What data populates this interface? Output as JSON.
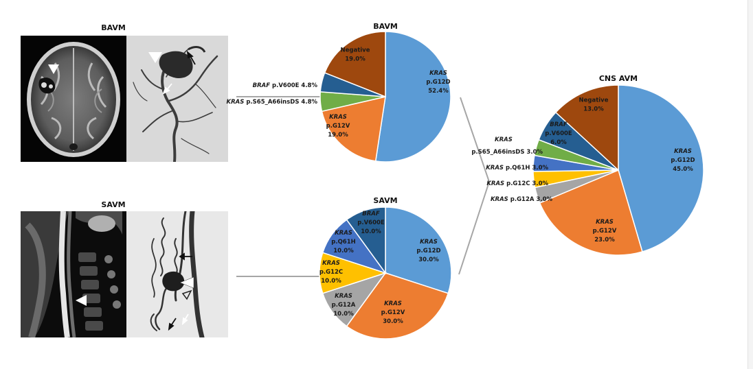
{
  "figure": {
    "bavm_panel_title": "BAVM",
    "savm_panel_title": "SAVM"
  },
  "colors": {
    "G12D": "#5b9bd5",
    "G12V": "#ed7d31",
    "G12A": "#a5a5a5",
    "G12C": "#ffc000",
    "Q61H": "#4472c4",
    "S65": "#70ad47",
    "BRAF": "#255e91",
    "Negative": "#9e480e",
    "connector": "#a6a6a6",
    "image_panel_border": "#cfcfcf"
  },
  "images": [
    {
      "name": "bavm-axial-mri",
      "description_icon": "brain-mri-image",
      "marker": "arrowhead"
    },
    {
      "name": "bavm-angiogram",
      "description_icon": "cerebral-angiogram-image",
      "marker": "arrowhead-and-arrows"
    },
    {
      "name": "savm-sagittal-mri",
      "description_icon": "spinal-mri-image",
      "marker": "arrowhead"
    },
    {
      "name": "savm-angiogram",
      "description_icon": "spinal-angiogram-image",
      "marker": "arrowheads-and-arrows"
    }
  ],
  "chart_data": [
    {
      "type": "pie",
      "title": "BAVM",
      "slices": [
        {
          "key": "G12D",
          "gene": "KRAS",
          "variant": "p.G12D",
          "value": 52.4,
          "label": "52.4%"
        },
        {
          "key": "G12V",
          "gene": "KRAS",
          "variant": "p.G12V",
          "value": 19.0,
          "label": "19.0%"
        },
        {
          "key": "S65",
          "gene": "KRAS",
          "variant": "p.S65_A66insDS",
          "value": 4.8,
          "label": "4.8%"
        },
        {
          "key": "BRAF",
          "gene": "BRAF",
          "variant": "p.V600E",
          "value": 4.8,
          "label": "4.8%"
        },
        {
          "key": "Negative",
          "gene": "",
          "variant": "Negative",
          "value": 19.0,
          "label": "19.0%"
        }
      ]
    },
    {
      "type": "pie",
      "title": "SAVM",
      "slices": [
        {
          "key": "G12D",
          "gene": "KRAS",
          "variant": "p.G12D",
          "value": 30.0,
          "label": "30.0%"
        },
        {
          "key": "G12V",
          "gene": "KRAS",
          "variant": "p.G12V",
          "value": 30.0,
          "label": "30.0%"
        },
        {
          "key": "G12A",
          "gene": "KRAS",
          "variant": "p.G12A",
          "value": 10.0,
          "label": "10.0%"
        },
        {
          "key": "G12C",
          "gene": "KRAS",
          "variant": "p.G12C",
          "value": 10.0,
          "label": "10.0%"
        },
        {
          "key": "Q61H",
          "gene": "KRAS",
          "variant": "p.Q61H",
          "value": 10.0,
          "label": "10.0%"
        },
        {
          "key": "BRAF",
          "gene": "BRAF",
          "variant": "p.V600E",
          "value": 10.0,
          "label": "10.0%"
        }
      ]
    },
    {
      "type": "pie",
      "title": "CNS AVM",
      "slices": [
        {
          "key": "G12D",
          "gene": "KRAS",
          "variant": "p.G12D",
          "value": 45.0,
          "label": "45.0%"
        },
        {
          "key": "G12V",
          "gene": "KRAS",
          "variant": "p.G12V",
          "value": 23.0,
          "label": "23.0%"
        },
        {
          "key": "G12A",
          "gene": "KRAS",
          "variant": "p.G12A",
          "value": 3.0,
          "label": "3.0%"
        },
        {
          "key": "G12C",
          "gene": "KRAS",
          "variant": "p.G12C",
          "value": 3.0,
          "label": "3.0%"
        },
        {
          "key": "Q61H",
          "gene": "KRAS",
          "variant": "p.Q61H",
          "value": 3.0,
          "label": "3.0%"
        },
        {
          "key": "S65",
          "gene": "KRAS",
          "variant": "p.S65_A66insDS",
          "value": 3.0,
          "label": "3.0%"
        },
        {
          "key": "BRAF",
          "gene": "BRAF",
          "variant": "p.V600E",
          "value": 6.0,
          "label": "6.0%"
        },
        {
          "key": "Negative",
          "gene": "",
          "variant": "Negative",
          "value": 13.0,
          "label": "13.0%"
        }
      ]
    }
  ]
}
